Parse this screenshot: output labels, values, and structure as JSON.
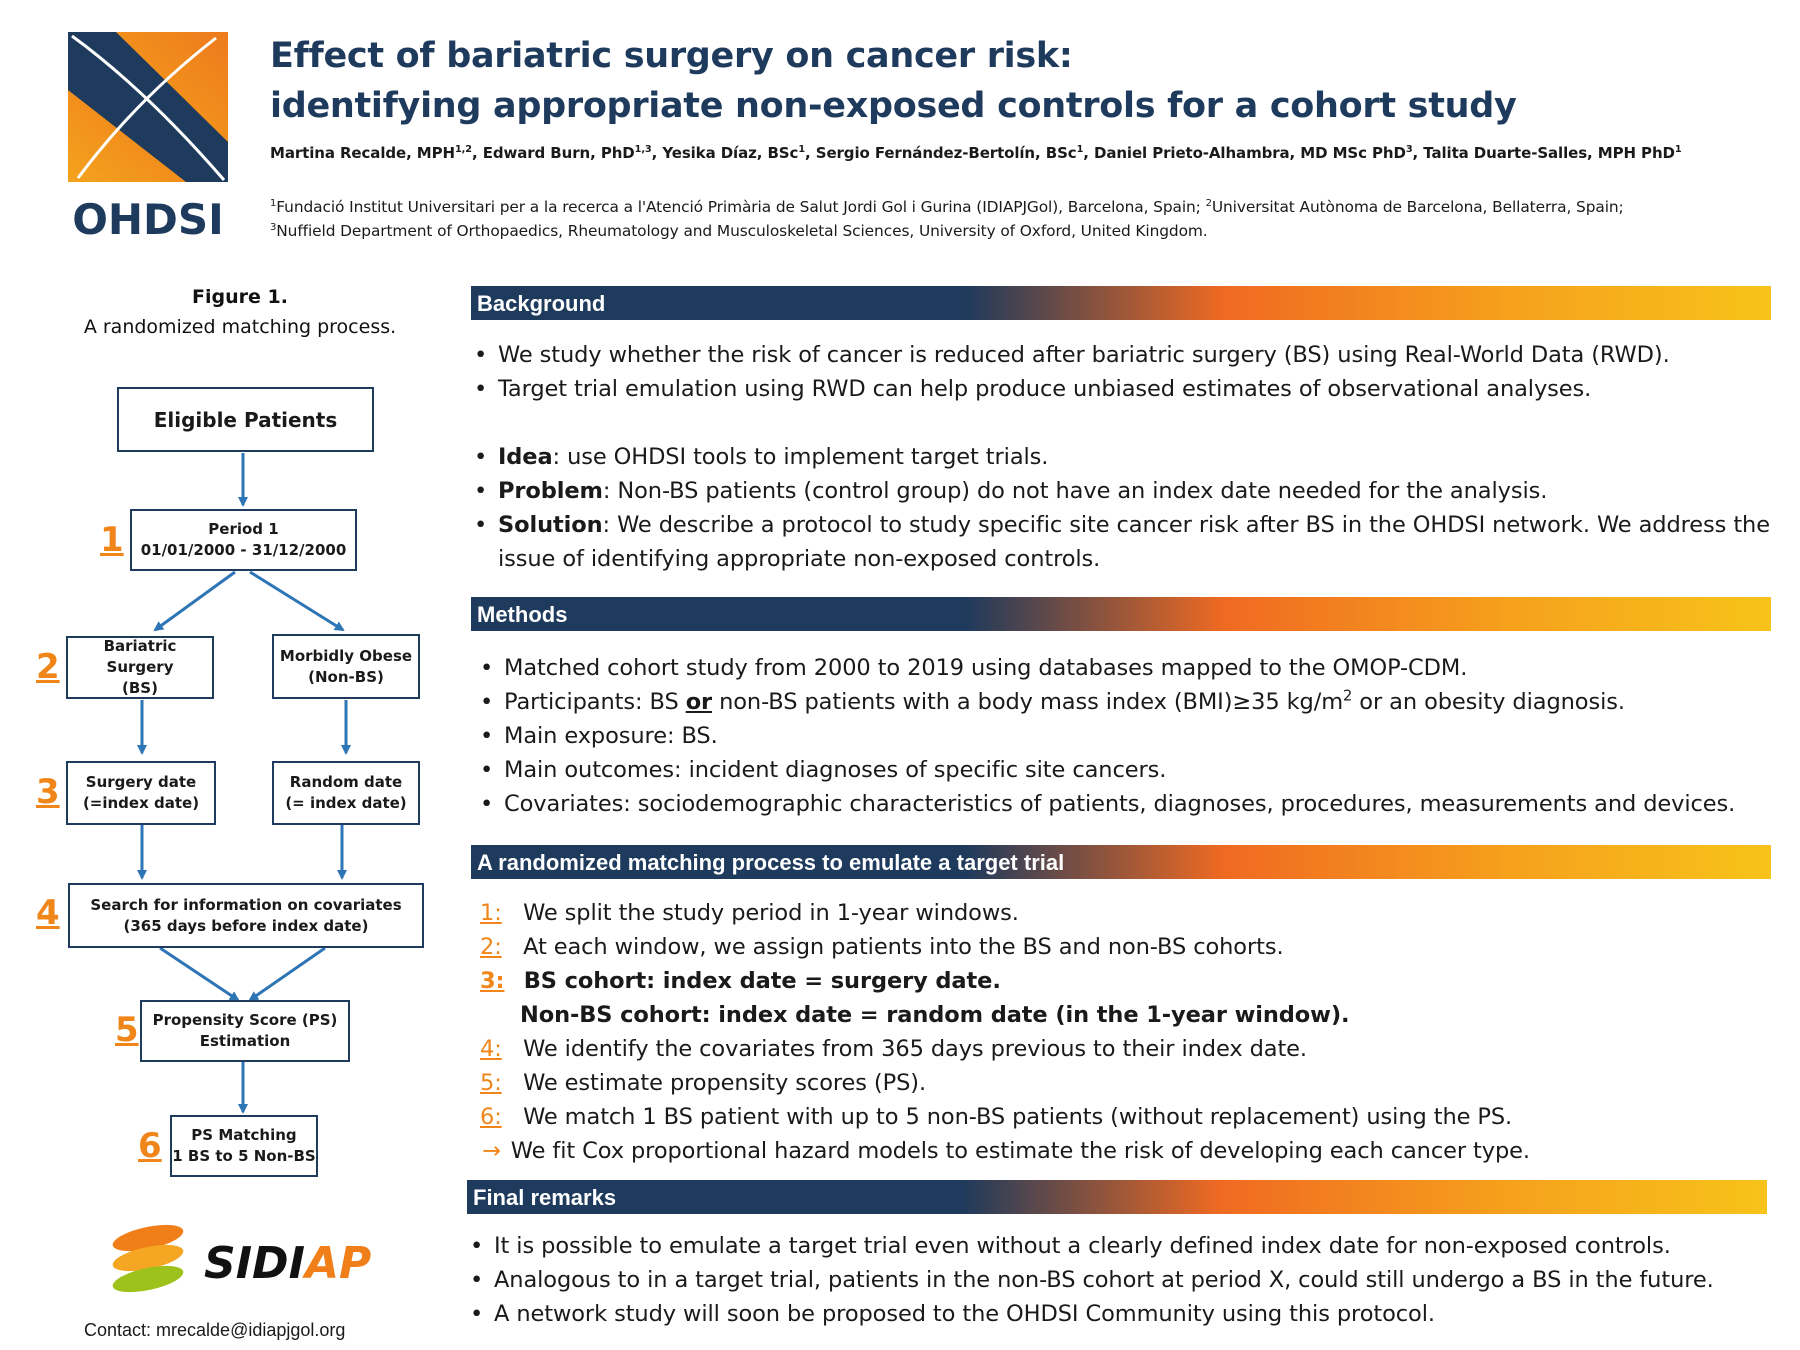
{
  "header": {
    "logo_text": "OHDSI",
    "title_line1": "Effect of bariatric surgery on cancer risk:",
    "title_line2": "identifying appropriate non-exposed controls for a cohort study",
    "authors": [
      {
        "name": "Martina Recalde, MPH",
        "sup": "1,2"
      },
      {
        "name": "Edward Burn, PhD",
        "sup": "1,3"
      },
      {
        "name": "Yesika Díaz, BSc",
        "sup": "1"
      },
      {
        "name": "Sergio Fernández-Bertolín, BSc",
        "sup": "1"
      },
      {
        "name": "Daniel Prieto-Alhambra, MD MSc PhD",
        "sup": "3"
      },
      {
        "name": "Talita Duarte-Salles, MPH PhD",
        "sup": "1"
      }
    ],
    "affiliations": [
      {
        "sup": "1",
        "text": "Fundació Institut Universitari per a la recerca a l'Atenció Primària de Salut Jordi Gol i Gurina (IDIAPJGol), Barcelona, Spain;"
      },
      {
        "sup": "2",
        "text": "Universitat Autònoma de Barcelona, Bellaterra, Spain;"
      },
      {
        "sup": "3",
        "text": "Nuffield Department of Orthopaedics, Rheumatology and Musculoskeletal Sciences, University of Oxford, United Kingdom."
      }
    ]
  },
  "figure": {
    "title": "Figure 1.",
    "subtitle": "A randomized matching process.",
    "eligible": "Eligible Patients",
    "period_line1": "Period 1",
    "period_line2": "01/01/2000 -  31/12/2000",
    "bs_line1": "Bariatric Surgery",
    "bs_line2": "(BS)",
    "obese_line1": "Morbidly Obese",
    "obese_line2": "(Non-BS)",
    "surgery_line1": "Surgery date",
    "surgery_line2": "(=index date)",
    "random_line1": "Random date",
    "random_line2": "(= index date)",
    "cov_line1": "Search for information on covariates",
    "cov_line2": "(365 days before index date)",
    "ps_line1": "Propensity Score (PS)",
    "ps_line2": "Estimation",
    "match_line1": "PS Matching",
    "match_line2": "1 BS to 5 Non-BS",
    "steps": [
      "1",
      "2",
      "3",
      "4",
      "5",
      "6"
    ]
  },
  "background": {
    "heading": "Background",
    "items": [
      "We study whether the risk of cancer is reduced after bariatric surgery (BS) using Real-World Data (RWD).",
      "Target trial emulation using RWD can help produce unbiased estimates of observational analyses."
    ],
    "labeled": [
      {
        "label": "Idea",
        "text": ": use OHDSI tools to implement target trials."
      },
      {
        "label": "Problem",
        "text": ": Non-BS patients (control group) do not have an index date needed for the analysis."
      },
      {
        "label": "Solution",
        "text": ": We describe a protocol to study specific site cancer risk after BS in the OHDSI network. We address the issue of identifying appropriate non-exposed controls."
      }
    ]
  },
  "methods": {
    "heading": "Methods",
    "item1": "Matched cohort study from 2000 to 2019 using databases mapped to the OMOP-CDM.",
    "item2_pre": "Participants: BS ",
    "item2_or": "or",
    "item2_mid": " non-BS patients with a body mass index (BMI)≥35 kg/m",
    "item2_sup": "2",
    "item2_post": " or an obesity diagnosis.",
    "item3": "Main exposure: BS.",
    "item4": "Main outcomes: incident diagnoses of specific site cancers.",
    "item5": "Covariates: sociodemographic characteristics of patients, diagnoses, procedures, measurements and devices."
  },
  "process": {
    "heading": "A randomized matching process to emulate a target trial",
    "steps": [
      {
        "num": "1:",
        "text": "We split the study period in 1-year windows."
      },
      {
        "num": "2:",
        "text": "At each window, we assign patients into the BS and non-BS cohorts."
      },
      {
        "num": "3:",
        "text": "BS cohort: index date =  surgery date."
      },
      {
        "num": "",
        "text": "Non-BS cohort: index date = random date (in the 1-year window)."
      },
      {
        "num": "4:",
        "text": "We identify the covariates from 365 days previous to their index date."
      },
      {
        "num": "5:",
        "text": "We estimate propensity scores (PS)."
      },
      {
        "num": "6:",
        "text": "We match 1 BS patient with up to 5 non-BS patients (without replacement) using the PS."
      }
    ],
    "arrow_symbol": "→",
    "arrow_text": "We fit Cox proportional hazard models to estimate the risk of developing each cancer type."
  },
  "remarks": {
    "heading": "Final remarks",
    "items": [
      "It is possible to emulate a target trial even without a clearly defined index date for non-exposed controls.",
      "Analogous to in a target trial, patients in the non-BS cohort at period X, could still undergo a BS in the future.",
      "A network study will soon be proposed to the OHDSI Community using this protocol."
    ]
  },
  "footer": {
    "sidiap_logo": "SIDIAP",
    "contact": "Contact:  mrecalde@idiapjgol.org"
  },
  "colors": {
    "navy": "#1e3a5c",
    "orange": "#f0861a"
  }
}
